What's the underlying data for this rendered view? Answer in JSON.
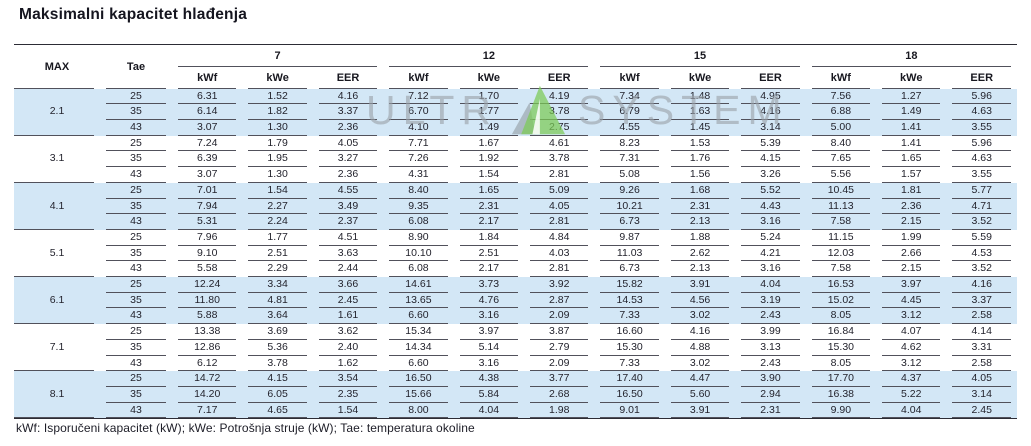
{
  "page": {
    "title": "Maksimalni kapacitet hlađenja",
    "footnote": "kWf: Isporučeni kapacitet (kW); kWe: Potrošnja struje (kW); Tae: temperatura okoline"
  },
  "colors": {
    "band": "#d3e7f6",
    "rule": "#51515b",
    "frame": "#2c2c35",
    "watermark_gray": "#9ba3aa",
    "watermark_green": "#7ccb55",
    "watermark_dark": "#8d959b"
  },
  "watermark": {
    "left": "ULTR",
    "right": "SYSTEM"
  },
  "table": {
    "header": {
      "max": "MAX",
      "tae": "Tae",
      "groups": [
        "7",
        "12",
        "15",
        "18"
      ],
      "subcols": [
        "kWf",
        "kWe",
        "EER"
      ]
    },
    "groups": [
      {
        "max": "2.1",
        "shaded": true,
        "rows": [
          {
            "tae": "25",
            "values": [
              "6.31",
              "1.52",
              "4.16",
              "7.12",
              "1.70",
              "4.19",
              "7.34",
              "1.48",
              "4.95",
              "7.56",
              "1.27",
              "5.96"
            ]
          },
          {
            "tae": "35",
            "values": [
              "6.14",
              "1.82",
              "3.37",
              "6.70",
              "1.77",
              "3.78",
              "6.79",
              "1.63",
              "4.16",
              "6.88",
              "1.49",
              "4.63"
            ]
          },
          {
            "tae": "43",
            "values": [
              "3.07",
              "1.30",
              "2.36",
              "4.10",
              "1.49",
              "2.75",
              "4.55",
              "1.45",
              "3.14",
              "5.00",
              "1.41",
              "3.55"
            ]
          }
        ]
      },
      {
        "max": "3.1",
        "shaded": false,
        "rows": [
          {
            "tae": "25",
            "values": [
              "7.24",
              "1.79",
              "4.05",
              "7.71",
              "1.67",
              "4.61",
              "8.23",
              "1.53",
              "5.39",
              "8.40",
              "1.41",
              "5.96"
            ]
          },
          {
            "tae": "35",
            "values": [
              "6.39",
              "1.95",
              "3.27",
              "7.26",
              "1.92",
              "3.78",
              "7.31",
              "1.76",
              "4.15",
              "7.65",
              "1.65",
              "4.63"
            ]
          },
          {
            "tae": "43",
            "values": [
              "3.07",
              "1.30",
              "2.36",
              "4.31",
              "1.54",
              "2.81",
              "5.08",
              "1.56",
              "3.26",
              "5.56",
              "1.57",
              "3.55"
            ]
          }
        ]
      },
      {
        "max": "4.1",
        "shaded": true,
        "rows": [
          {
            "tae": "25",
            "values": [
              "7.01",
              "1.54",
              "4.55",
              "8.40",
              "1.65",
              "5.09",
              "9.26",
              "1.68",
              "5.52",
              "10.45",
              "1.81",
              "5.77"
            ]
          },
          {
            "tae": "35",
            "values": [
              "7.94",
              "2.27",
              "3.49",
              "9.35",
              "2.31",
              "4.05",
              "10.21",
              "2.31",
              "4.43",
              "11.13",
              "2.36",
              "4.71"
            ]
          },
          {
            "tae": "43",
            "values": [
              "5.31",
              "2.24",
              "2.37",
              "6.08",
              "2.17",
              "2.81",
              "6.73",
              "2.13",
              "3.16",
              "7.58",
              "2.15",
              "3.52"
            ]
          }
        ]
      },
      {
        "max": "5.1",
        "shaded": false,
        "rows": [
          {
            "tae": "25",
            "values": [
              "7.96",
              "1.77",
              "4.51",
              "8.90",
              "1.84",
              "4.84",
              "9.87",
              "1.88",
              "5.24",
              "11.15",
              "1.99",
              "5.59"
            ]
          },
          {
            "tae": "35",
            "values": [
              "9.10",
              "2.51",
              "3.63",
              "10.10",
              "2.51",
              "4.03",
              "11.03",
              "2.62",
              "4.21",
              "12.03",
              "2.66",
              "4.53"
            ]
          },
          {
            "tae": "43",
            "values": [
              "5.58",
              "2.29",
              "2.44",
              "6.08",
              "2.17",
              "2.81",
              "6.73",
              "2.13",
              "3.16",
              "7.58",
              "2.15",
              "3.52"
            ]
          }
        ]
      },
      {
        "max": "6.1",
        "shaded": true,
        "rows": [
          {
            "tae": "25",
            "values": [
              "12.24",
              "3.34",
              "3.66",
              "14.61",
              "3.73",
              "3.92",
              "15.82",
              "3.91",
              "4.04",
              "16.53",
              "3.97",
              "4.16"
            ]
          },
          {
            "tae": "35",
            "values": [
              "11.80",
              "4.81",
              "2.45",
              "13.65",
              "4.76",
              "2.87",
              "14.53",
              "4.56",
              "3.19",
              "15.02",
              "4.45",
              "3.37"
            ]
          },
          {
            "tae": "43",
            "values": [
              "5.88",
              "3.64",
              "1.61",
              "6.60",
              "3.16",
              "2.09",
              "7.33",
              "3.02",
              "2.43",
              "8.05",
              "3.12",
              "2.58"
            ]
          }
        ]
      },
      {
        "max": "7.1",
        "shaded": false,
        "rows": [
          {
            "tae": "25",
            "values": [
              "13.38",
              "3.69",
              "3.62",
              "15.34",
              "3.97",
              "3.87",
              "16.60",
              "4.16",
              "3.99",
              "16.84",
              "4.07",
              "4.14"
            ]
          },
          {
            "tae": "35",
            "values": [
              "12.86",
              "5.36",
              "2.40",
              "14.34",
              "5.14",
              "2.79",
              "15.30",
              "4.88",
              "3.13",
              "15.30",
              "4.62",
              "3.31"
            ]
          },
          {
            "tae": "43",
            "values": [
              "6.12",
              "3.78",
              "1.62",
              "6.60",
              "3.16",
              "2.09",
              "7.33",
              "3.02",
              "2.43",
              "8.05",
              "3.12",
              "2.58"
            ]
          }
        ]
      },
      {
        "max": "8.1",
        "shaded": true,
        "rows": [
          {
            "tae": "25",
            "values": [
              "14.72",
              "4.15",
              "3.54",
              "16.50",
              "4.38",
              "3.77",
              "17.40",
              "4.47",
              "3.90",
              "17.70",
              "4.37",
              "4.05"
            ]
          },
          {
            "tae": "35",
            "values": [
              "14.20",
              "6.05",
              "2.35",
              "15.66",
              "5.84",
              "2.68",
              "16.50",
              "5.60",
              "2.94",
              "16.38",
              "5.22",
              "3.14"
            ]
          },
          {
            "tae": "43",
            "values": [
              "7.17",
              "4.65",
              "1.54",
              "8.00",
              "4.04",
              "1.98",
              "9.01",
              "3.91",
              "2.31",
              "9.90",
              "4.04",
              "2.45"
            ]
          }
        ]
      }
    ]
  }
}
